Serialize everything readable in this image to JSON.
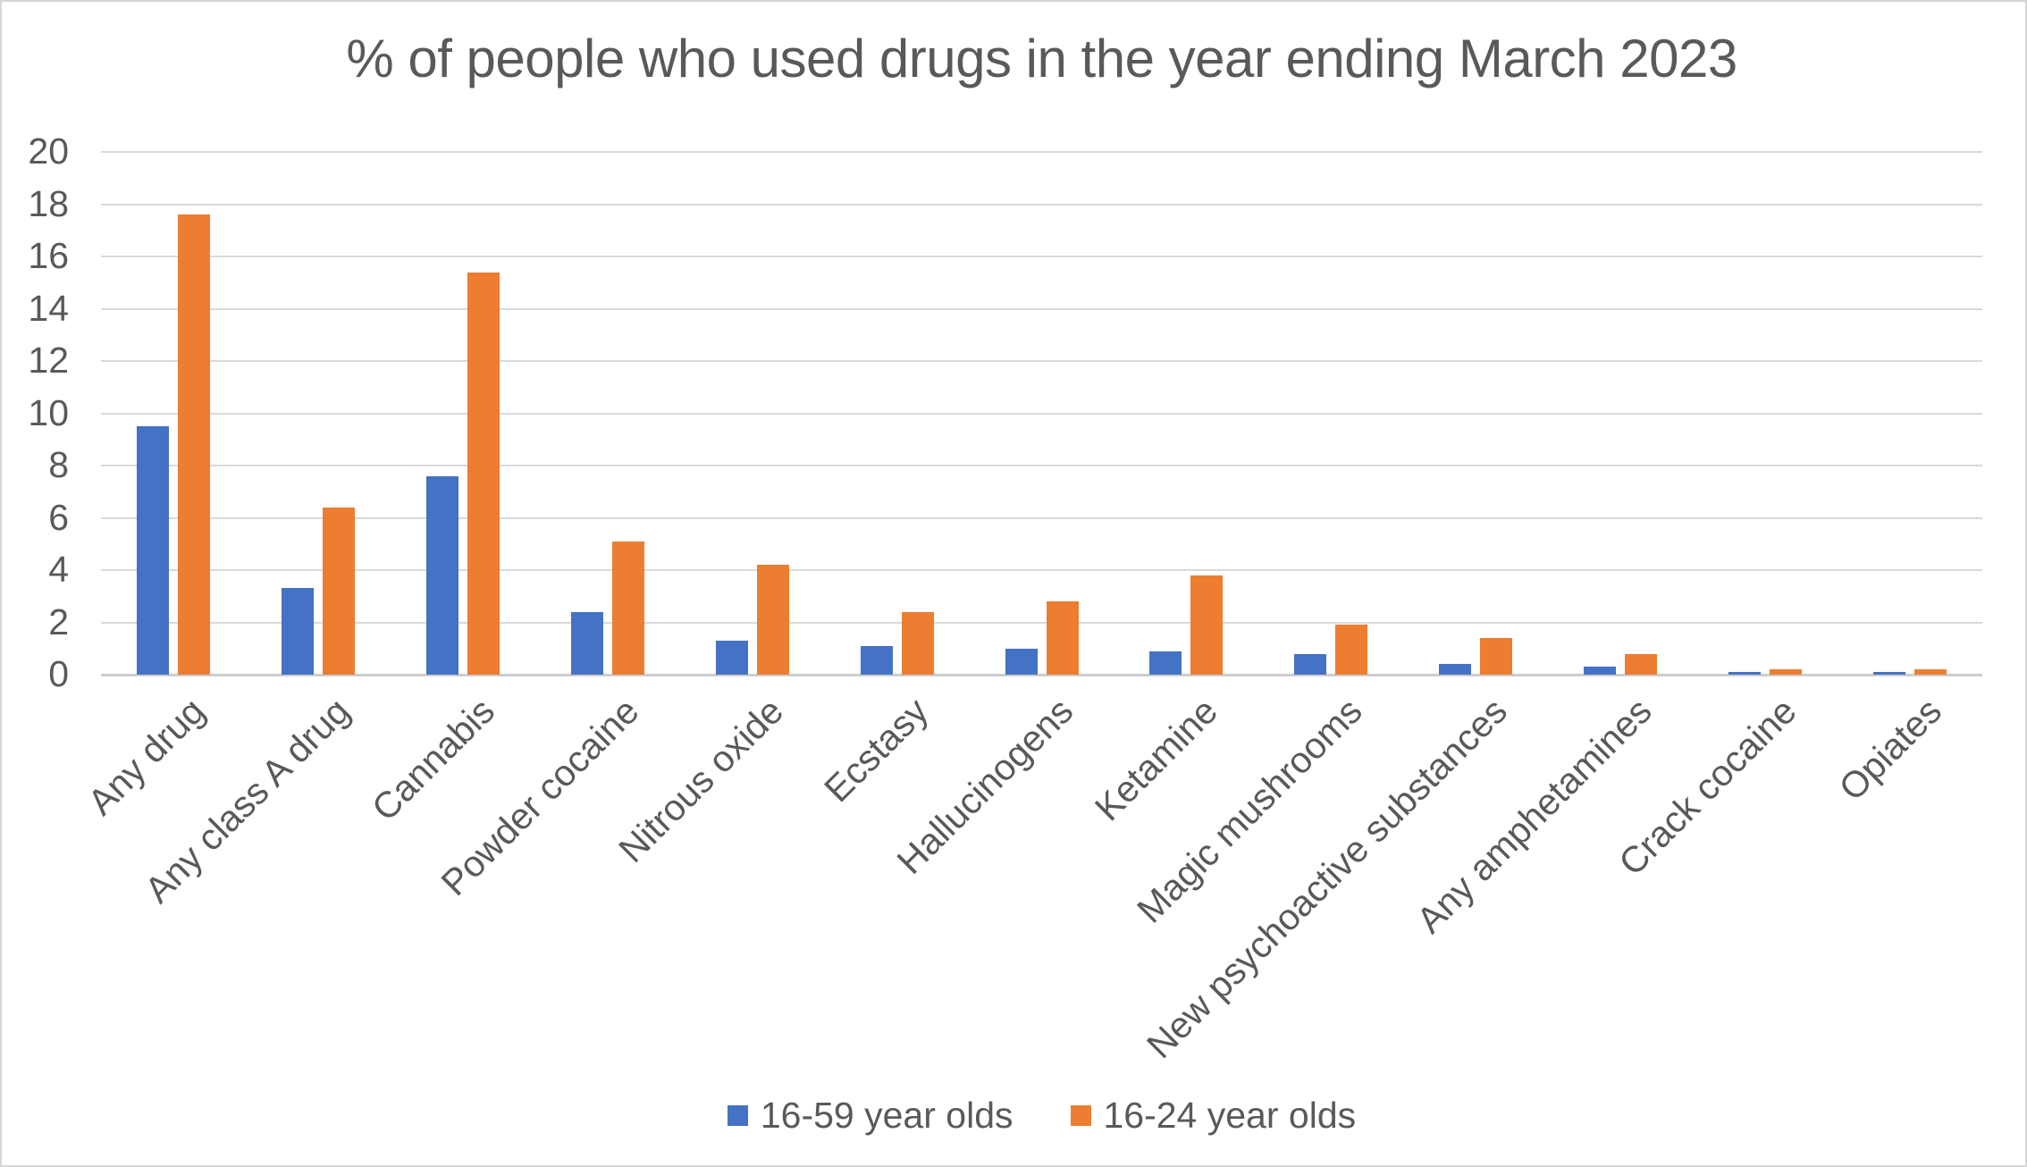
{
  "chart_data": {
    "type": "bar",
    "title": "% of people who used drugs in the year ending March 2023",
    "categories": [
      "Any drug",
      "Any class A drug",
      "Cannabis",
      "Powder cocaine",
      "Nitrous oxide",
      "Ecstasy",
      "Hallucinogens",
      "Ketamine",
      "Magic mushrooms",
      "New psychoactive substances",
      "Any amphetamines",
      "Crack cocaine",
      "Opiates"
    ],
    "series": [
      {
        "name": "16-59 year olds",
        "color": "#4472C4",
        "values": [
          9.5,
          3.3,
          7.6,
          2.4,
          1.3,
          1.1,
          1.0,
          0.9,
          0.8,
          0.4,
          0.3,
          0.1,
          0.1
        ]
      },
      {
        "name": "16-24 year olds",
        "color": "#ED7D31",
        "values": [
          17.6,
          6.4,
          15.4,
          5.1,
          4.2,
          2.4,
          2.8,
          3.8,
          1.9,
          1.4,
          0.8,
          0.2,
          0.2
        ]
      }
    ],
    "ylim": [
      0,
      20
    ],
    "yticks": [
      0,
      2,
      4,
      6,
      8,
      10,
      12,
      14,
      16,
      18,
      20
    ],
    "grid": true,
    "legend_position": "bottom"
  },
  "style_colors": {
    "text": "#595959",
    "gridline": "#D9D9D9",
    "axis_line": "#CDCDCD",
    "series_blue": "#4472C4",
    "series_orange": "#ED7D31"
  }
}
